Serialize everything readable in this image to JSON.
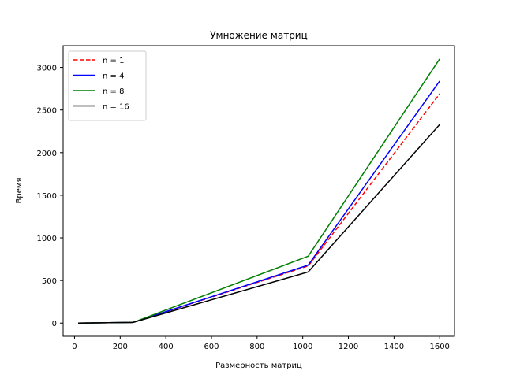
{
  "chart_data": {
    "type": "line",
    "title": "Умножение матриц",
    "xlabel": "Размерность матриц",
    "ylabel": "Время",
    "x": [
      16,
      256,
      1024,
      1600
    ],
    "xlim": [
      -50,
      1665
    ],
    "ylim": [
      -155,
      3255
    ],
    "xticks": [
      0,
      200,
      400,
      600,
      800,
      1000,
      1200,
      1400,
      1600
    ],
    "yticks": [
      0,
      500,
      1000,
      1500,
      2000,
      2500,
      3000
    ],
    "grid": false,
    "legend_position": "upper-left",
    "series": [
      {
        "name": "n = 1",
        "color": "#ff0000",
        "style": "dashed",
        "values": [
          0,
          8,
          670,
          2690
        ]
      },
      {
        "name": "n = 4",
        "color": "#0000ff",
        "style": "solid",
        "values": [
          0,
          8,
          680,
          2840
        ]
      },
      {
        "name": "n = 8",
        "color": "#008000",
        "style": "solid",
        "values": [
          0,
          8,
          785,
          3100
        ]
      },
      {
        "name": "n = 16",
        "color": "#000000",
        "style": "solid",
        "values": [
          0,
          8,
          600,
          2330
        ]
      }
    ]
  }
}
